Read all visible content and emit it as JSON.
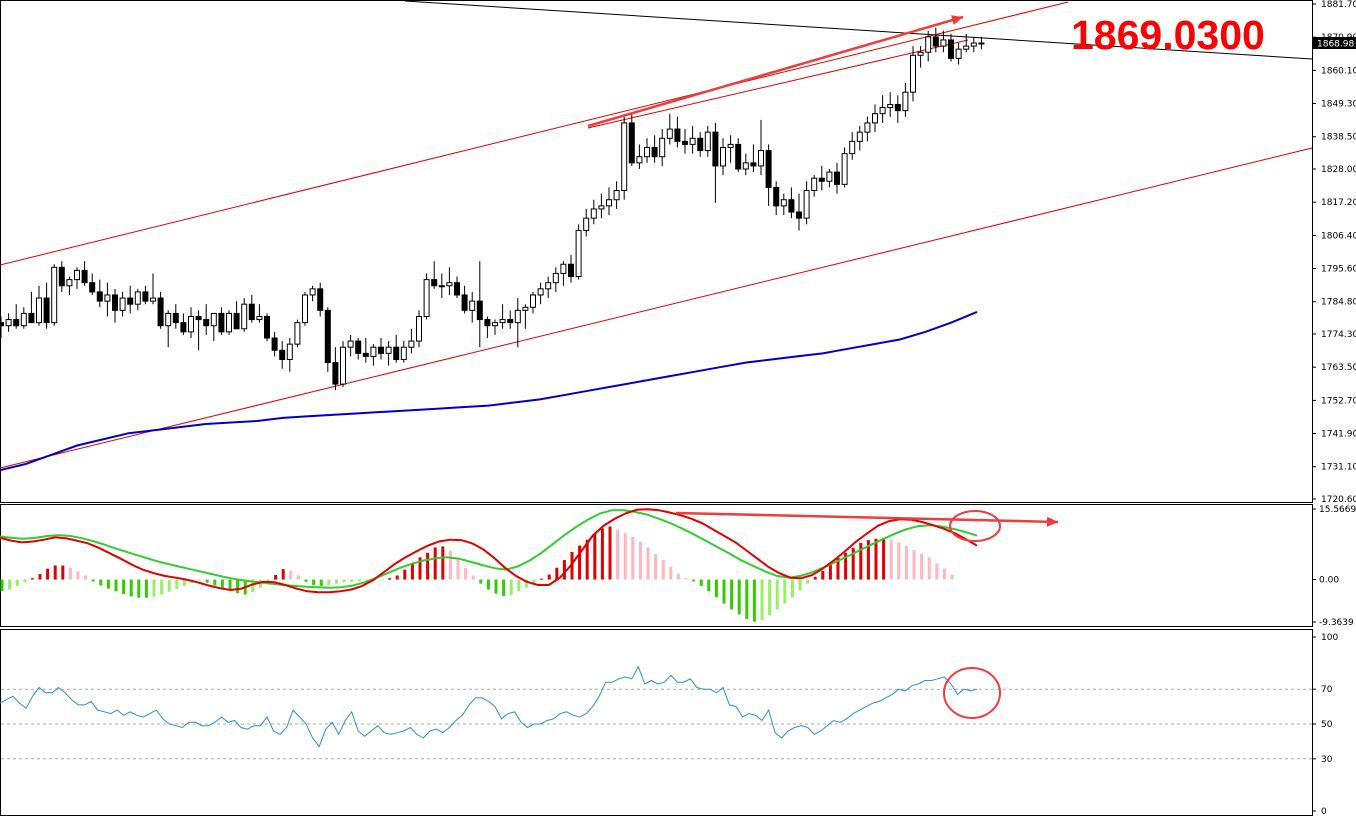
{
  "annotation": {
    "price_label": "1869.0300"
  },
  "price_panel": {
    "current_price_tag": "1868.98",
    "axis_ticks": [
      "1881.70",
      "1870.90",
      "1860.10",
      "1849.30",
      "1838.50",
      "1828.00",
      "1817.20",
      "1806.40",
      "1795.60",
      "1784.80",
      "1774.30",
      "1763.50",
      "1752.70",
      "1741.90",
      "1731.10",
      "1720.60"
    ]
  },
  "macd_panel": {
    "axis_ticks": [
      "15.5669",
      "0.00",
      "-9.3639"
    ]
  },
  "rsi_panel": {
    "axis_ticks": [
      "100",
      "70",
      "50",
      "30",
      "0"
    ]
  },
  "colors": {
    "channel": "#e00000",
    "arrow": "#f03c3c",
    "moving_average": "#0000c8",
    "trendline": "#000000",
    "macd_signal_red": "#e00000",
    "macd_signal_green": "#33cc33",
    "hist_pos_strong": "#e00000",
    "hist_pos_weak": "#ffb6c1",
    "hist_neg_strong": "#33cc00",
    "hist_neg_weak": "#99ee66",
    "rsi_line": "#2a8fd6"
  },
  "chart_data": [
    {
      "type": "candlestick",
      "ylim": [
        1720.6,
        1881.7
      ],
      "grid": false,
      "ohlc": [
        [
          1778,
          1780,
          1773,
          1777
        ],
        [
          1777,
          1781,
          1775,
          1779
        ],
        [
          1779,
          1784,
          1776,
          1777
        ],
        [
          1777,
          1783,
          1776,
          1781
        ],
        [
          1781,
          1788,
          1778,
          1778
        ],
        [
          1778,
          1790,
          1777,
          1786
        ],
        [
          1786,
          1791,
          1776,
          1778
        ],
        [
          1778,
          1797,
          1777,
          1796
        ],
        [
          1796,
          1798,
          1788,
          1790
        ],
        [
          1790,
          1793,
          1787,
          1792
        ],
        [
          1792,
          1796,
          1789,
          1795
        ],
        [
          1795,
          1798,
          1790,
          1791
        ],
        [
          1791,
          1794,
          1787,
          1788
        ],
        [
          1788,
          1792,
          1783,
          1785
        ],
        [
          1785,
          1791,
          1780,
          1787
        ],
        [
          1787,
          1789,
          1778,
          1782
        ],
        [
          1782,
          1788,
          1780,
          1786
        ],
        [
          1786,
          1790,
          1781,
          1784
        ],
        [
          1784,
          1789,
          1782,
          1788
        ],
        [
          1788,
          1790,
          1784,
          1785
        ],
        [
          1785,
          1794,
          1784,
          1786
        ],
        [
          1786,
          1788,
          1776,
          1777
        ],
        [
          1777,
          1782,
          1770,
          1781
        ],
        [
          1781,
          1784,
          1776,
          1778
        ],
        [
          1778,
          1781,
          1774,
          1775
        ],
        [
          1775,
          1783,
          1773,
          1780
        ],
        [
          1780,
          1782,
          1769,
          1779
        ],
        [
          1779,
          1784,
          1774,
          1777
        ],
        [
          1777,
          1781,
          1772,
          1781
        ],
        [
          1781,
          1783,
          1774,
          1775
        ],
        [
          1775,
          1782,
          1774,
          1781
        ],
        [
          1781,
          1785,
          1776,
          1776
        ],
        [
          1776,
          1786,
          1775,
          1784
        ],
        [
          1784,
          1787,
          1778,
          1779
        ],
        [
          1779,
          1784,
          1778,
          1780
        ],
        [
          1780,
          1781,
          1772,
          1773
        ],
        [
          1773,
          1775,
          1767,
          1769
        ],
        [
          1769,
          1772,
          1763,
          1766
        ],
        [
          1766,
          1773,
          1762,
          1771
        ],
        [
          1771,
          1779,
          1770,
          1778
        ],
        [
          1778,
          1788,
          1777,
          1787
        ],
        [
          1787,
          1790,
          1785,
          1789
        ],
        [
          1789,
          1791,
          1780,
          1782
        ],
        [
          1782,
          1783,
          1762,
          1765
        ],
        [
          1765,
          1770,
          1756,
          1758
        ],
        [
          1758,
          1772,
          1757,
          1770
        ],
        [
          1770,
          1774,
          1767,
          1772
        ],
        [
          1772,
          1773,
          1766,
          1768
        ],
        [
          1768,
          1773,
          1765,
          1767
        ],
        [
          1767,
          1771,
          1764,
          1770
        ],
        [
          1770,
          1773,
          1766,
          1768
        ],
        [
          1768,
          1772,
          1764,
          1770
        ],
        [
          1770,
          1774,
          1765,
          1766
        ],
        [
          1766,
          1772,
          1765,
          1770
        ],
        [
          1770,
          1776,
          1768,
          1772
        ],
        [
          1772,
          1782,
          1770,
          1780
        ],
        [
          1780,
          1794,
          1779,
          1792
        ],
        [
          1792,
          1798,
          1789,
          1790
        ],
        [
          1790,
          1794,
          1786,
          1790
        ],
        [
          1790,
          1796,
          1787,
          1791
        ],
        [
          1791,
          1793,
          1786,
          1787
        ],
        [
          1787,
          1790,
          1781,
          1782
        ],
        [
          1782,
          1788,
          1778,
          1785
        ],
        [
          1785,
          1798,
          1770,
          1779
        ],
        [
          1779,
          1780,
          1773,
          1777
        ],
        [
          1777,
          1779,
          1774,
          1778
        ],
        [
          1778,
          1784,
          1776,
          1779
        ],
        [
          1779,
          1782,
          1776,
          1778
        ],
        [
          1778,
          1786,
          1770,
          1782
        ],
        [
          1782,
          1784,
          1776,
          1783
        ],
        [
          1783,
          1788,
          1781,
          1787
        ],
        [
          1787,
          1791,
          1784,
          1789
        ],
        [
          1789,
          1793,
          1786,
          1791
        ],
        [
          1791,
          1796,
          1788,
          1794
        ],
        [
          1794,
          1798,
          1790,
          1797
        ],
        [
          1797,
          1800,
          1791,
          1793
        ],
        [
          1793,
          1810,
          1792,
          1808
        ],
        [
          1808,
          1815,
          1806,
          1812
        ],
        [
          1812,
          1818,
          1810,
          1815
        ],
        [
          1815,
          1820,
          1812,
          1816
        ],
        [
          1816,
          1822,
          1813,
          1818
        ],
        [
          1818,
          1824,
          1815,
          1821
        ],
        [
          1821,
          1845,
          1818,
          1843
        ],
        [
          1843,
          1846,
          1829,
          1830
        ],
        [
          1830,
          1836,
          1828,
          1832
        ],
        [
          1832,
          1838,
          1830,
          1835
        ],
        [
          1835,
          1839,
          1830,
          1832
        ],
        [
          1832,
          1841,
          1829,
          1838
        ],
        [
          1838,
          1846,
          1836,
          1841
        ],
        [
          1841,
          1845,
          1835,
          1837
        ],
        [
          1837,
          1841,
          1833,
          1836
        ],
        [
          1836,
          1842,
          1833,
          1838
        ],
        [
          1838,
          1840,
          1832,
          1834
        ],
        [
          1834,
          1842,
          1832,
          1840
        ],
        [
          1840,
          1843,
          1817,
          1829
        ],
        [
          1829,
          1838,
          1826,
          1835
        ],
        [
          1835,
          1839,
          1830,
          1836
        ],
        [
          1836,
          1838,
          1827,
          1828
        ],
        [
          1828,
          1833,
          1826,
          1830
        ],
        [
          1830,
          1836,
          1827,
          1829
        ],
        [
          1829,
          1844,
          1826,
          1834
        ],
        [
          1834,
          1836,
          1816,
          1822
        ],
        [
          1822,
          1824,
          1813,
          1816
        ],
        [
          1816,
          1820,
          1813,
          1818
        ],
        [
          1818,
          1822,
          1812,
          1814
        ],
        [
          1814,
          1820,
          1808,
          1812
        ],
        [
          1812,
          1824,
          1810,
          1821
        ],
        [
          1821,
          1826,
          1819,
          1825
        ],
        [
          1825,
          1829,
          1821,
          1824
        ],
        [
          1824,
          1828,
          1822,
          1827
        ],
        [
          1827,
          1830,
          1820,
          1823
        ],
        [
          1823,
          1835,
          1822,
          1833
        ],
        [
          1833,
          1840,
          1831,
          1837
        ],
        [
          1837,
          1842,
          1834,
          1840
        ],
        [
          1840,
          1845,
          1837,
          1843
        ],
        [
          1843,
          1849,
          1840,
          1846
        ],
        [
          1846,
          1852,
          1843,
          1848
        ],
        [
          1848,
          1853,
          1845,
          1849
        ],
        [
          1849,
          1852,
          1843,
          1847
        ],
        [
          1847,
          1856,
          1845,
          1853
        ],
        [
          1853,
          1868,
          1850,
          1865
        ],
        [
          1865,
          1868,
          1861,
          1866
        ],
        [
          1866,
          1873,
          1863,
          1871
        ],
        [
          1871,
          1874,
          1866,
          1868
        ],
        [
          1868,
          1873,
          1866,
          1870
        ],
        [
          1870,
          1872,
          1863,
          1864
        ],
        [
          1864,
          1869,
          1862,
          1867
        ],
        [
          1867,
          1872,
          1866,
          1868
        ],
        [
          1868,
          1871,
          1866,
          1869
        ],
        [
          1869,
          1871,
          1867,
          1869
        ]
      ]
    },
    {
      "type": "histogram_line",
      "ylim": [
        -9.3639,
        15.5669
      ],
      "histogram": [
        -2.5,
        -2.2,
        -1.4,
        -0.6,
        0.3,
        1.2,
        2.4,
        3.1,
        3.1,
        2.6,
        1.8,
        0.9,
        -0.4,
        -1.3,
        -2,
        -2.6,
        -3.2,
        -3.7,
        -4.0,
        -4.0,
        -3.8,
        -3.3,
        -2.7,
        -2.1,
        -1.4,
        -0.8,
        -0.2,
        -0.7,
        -1.3,
        -1.8,
        -2.4,
        -3.0,
        -3.3,
        -2.8,
        -1.8,
        -0.6,
        1.0,
        2.3,
        2.0,
        0.9,
        -0.5,
        -1.2,
        -1.4,
        -1.2,
        -0.9,
        -0.6,
        -0.5,
        -0.4,
        -0.3,
        -0.2,
        -0.1,
        0.3,
        0.9,
        2.2,
        3.6,
        4.9,
        5.9,
        7.1,
        7.3,
        6.4,
        4.4,
        2.6,
        0.9,
        -0.9,
        -2.2,
        -3.1,
        -3.6,
        -3.4,
        -2.6,
        -1.8,
        -0.9,
        0.2,
        1.1,
        2.6,
        4.3,
        6.1,
        7.5,
        8.8,
        10.1,
        11.3,
        11.7,
        11.0,
        10.3,
        9.4,
        8.3,
        7.1,
        5.6,
        4.3,
        2.8,
        1.3,
        0.3,
        -0.4,
        -1.4,
        -2.6,
        -3.9,
        -5.3,
        -6.6,
        -7.7,
        -8.7,
        -9.3,
        -8.9,
        -7.9,
        -6.6,
        -5.3,
        -3.9,
        -2.4,
        -0.9,
        0.6,
        1.9,
        3.4,
        4.8,
        5.9,
        7.0,
        8.1,
        8.7,
        9.0,
        9.2,
        8.8,
        8.2,
        7.4,
        6.5,
        5.7,
        4.9,
        3.6,
        2.4,
        1.1
      ],
      "series": [
        {
          "values": [
            9.2,
            8.6,
            8.2,
            8.4,
            8.8,
            9.3,
            9.1,
            8.6,
            8.0,
            7.0,
            5.8,
            4.6,
            3.3,
            2.2,
            1.4,
            0.8,
            0.4,
            0.0,
            -0.6,
            -1.3,
            -1.9,
            -2.3,
            -2.0,
            -1.1,
            -0.5,
            -0.6,
            -1.2,
            -2.0,
            -2.6,
            -2.8,
            -2.8,
            -2.6,
            -2.2,
            -1.4,
            -0.1,
            1.7,
            3.5,
            5.0,
            6.3,
            7.5,
            8.4,
            8.8,
            8.7,
            8.0,
            6.7,
            4.8,
            2.6,
            0.8,
            -0.5,
            -1.2,
            -1.2,
            0.4,
            3.1,
            6.4,
            9.7,
            11.9,
            13.4,
            14.6,
            15.4,
            15.5,
            15.3,
            14.8,
            14.2,
            13.4,
            12.4,
            11.0,
            9.6,
            8.2,
            6.4,
            4.6,
            2.8,
            1.4,
            0.4,
            0.3,
            1.0,
            2.5,
            4.3,
            6.3,
            8.4,
            10.2,
            11.9,
            12.9,
            13.3,
            13.2,
            12.7,
            12.0,
            11.2,
            10.2,
            8.9,
            7.5
          ]
        },
        {
          "values": [
            9.5,
            9.2,
            9.0,
            9.2,
            9.6,
            9.8,
            9.6,
            9.1,
            8.4,
            7.6,
            6.7,
            5.9,
            5.1,
            4.3,
            3.6,
            3.0,
            2.4,
            1.8,
            1.2,
            0.6,
            0.1,
            -0.3,
            -0.6,
            -0.9,
            -1.2,
            -1.4,
            -1.6,
            -1.7,
            -1.8,
            -1.7,
            -1.3,
            -0.6,
            0.4,
            1.5,
            2.6,
            3.5,
            4.2,
            4.7,
            4.9,
            4.6,
            3.9,
            3.2,
            2.5,
            2.2,
            2.9,
            4.2,
            5.9,
            7.9,
            9.9,
            11.7,
            13.3,
            14.6,
            15.3,
            15.3,
            14.9,
            14.3,
            13.4,
            12.4,
            11.2,
            9.9,
            8.5,
            7.1,
            5.7,
            4.2,
            3.0,
            1.8,
            0.8,
            0.4,
            0.8,
            1.6,
            2.7,
            3.9,
            5.1,
            6.4,
            7.7,
            8.9,
            10.1,
            11.1,
            11.8,
            12.0,
            11.7,
            11.2,
            10.5,
            9.7
          ]
        }
      ]
    },
    {
      "type": "line",
      "ylim": [
        0,
        100
      ],
      "values": [
        62,
        64,
        66,
        62,
        59,
        66,
        71,
        68,
        68,
        71,
        68,
        64,
        61,
        61,
        63,
        58,
        57,
        56,
        58,
        55,
        57,
        55,
        54,
        56,
        58,
        53,
        50,
        49,
        48,
        51,
        51,
        49,
        49,
        51,
        54,
        51,
        52,
        48,
        47,
        49,
        49,
        54,
        46,
        44,
        48,
        58,
        54,
        50,
        42,
        37,
        47,
        51,
        44,
        52,
        57,
        46,
        43,
        46,
        49,
        45,
        44,
        45,
        46,
        48,
        44,
        42,
        46,
        47,
        45,
        48,
        52,
        55,
        61,
        65,
        65,
        63,
        60,
        53,
        56,
        57,
        51,
        48,
        50,
        50,
        52,
        53,
        56,
        57,
        55,
        54,
        56,
        60,
        66,
        74,
        74,
        76,
        77,
        76,
        83,
        73,
        75,
        73,
        74,
        78,
        74,
        74,
        76,
        71,
        70,
        70,
        68,
        71,
        61,
        60,
        54,
        56,
        55,
        52,
        58,
        45,
        42,
        46,
        48,
        49,
        48,
        44,
        46,
        49,
        52,
        51,
        53,
        56,
        58,
        60,
        62,
        63,
        65,
        67,
        70,
        69,
        72,
        73,
        75,
        75,
        76,
        77,
        73,
        67,
        70,
        69,
        70
      ]
    }
  ]
}
